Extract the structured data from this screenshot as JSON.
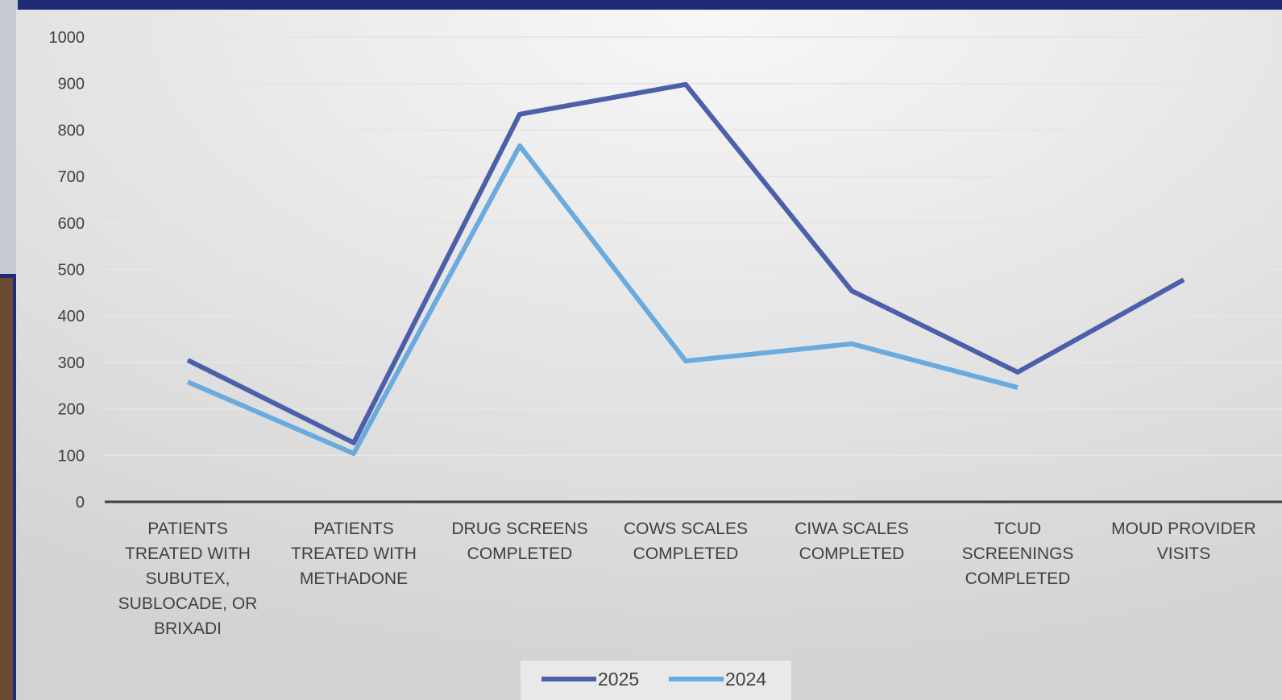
{
  "chart_data": {
    "type": "line",
    "categories": [
      "PATIENTS TREATED WITH SUBUTEX, SUBLOCADE, OR BRIXADI",
      "PATIENTS TREATED WITH METHADONE",
      "DRUG SCREENS COMPLETED",
      "COWS SCALES COMPLETED",
      "CIWA SCALES COMPLETED",
      "TCUD SCREENINGS COMPLETED",
      "MOUD PROVIDER VISITS"
    ],
    "series": [
      {
        "name": "2025",
        "color": "#4b5faa",
        "values": [
          305,
          127,
          834,
          898,
          454,
          279,
          478
        ]
      },
      {
        "name": "2024",
        "color": "#6aaadd",
        "values": [
          258,
          104,
          766,
          303,
          340,
          246,
          null
        ]
      }
    ],
    "ylim": [
      0,
      1000
    ],
    "yticks": [
      0,
      100,
      200,
      300,
      400,
      500,
      600,
      700,
      800,
      900,
      1000
    ],
    "grid": true
  }
}
